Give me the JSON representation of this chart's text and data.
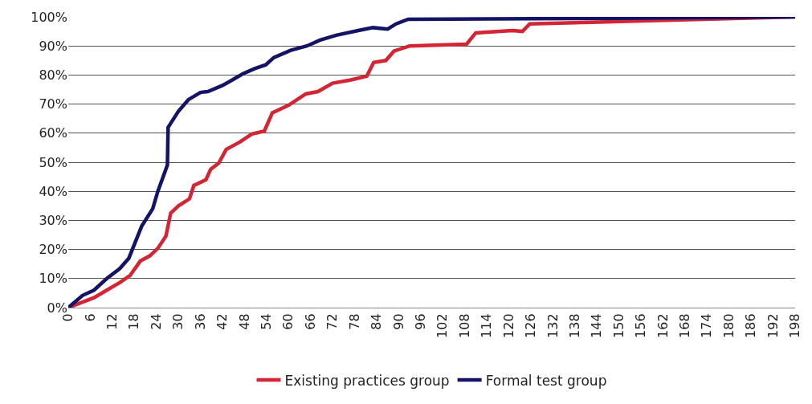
{
  "chart_data": {
    "type": "line",
    "xlim": [
      0,
      198
    ],
    "xticks": [
      0,
      6,
      12,
      18,
      24,
      30,
      36,
      42,
      48,
      54,
      60,
      66,
      72,
      78,
      84,
      90,
      96,
      102,
      108,
      114,
      120,
      126,
      132,
      138,
      144,
      150,
      156,
      162,
      168,
      174,
      180,
      186,
      192,
      198
    ],
    "ylim": [
      0,
      100
    ],
    "yticks": [
      {
        "value": 0,
        "label": "0%"
      },
      {
        "value": 10,
        "label": "10%"
      },
      {
        "value": 20,
        "label": "20%"
      },
      {
        "value": 30,
        "label": "30%"
      },
      {
        "value": 40,
        "label": "40%"
      },
      {
        "value": 50,
        "label": "50%"
      },
      {
        "value": 60,
        "label": "60%"
      },
      {
        "value": 70,
        "label": "70%"
      },
      {
        "value": 80,
        "label": "80%"
      },
      {
        "value": 90,
        "label": "90%"
      },
      {
        "value": 100,
        "label": "100%"
      }
    ],
    "grid": "y",
    "legend": "bottom",
    "marker": "none",
    "line_style": "solid",
    "series": [
      {
        "name": "Existing practices group",
        "color": "#d42535",
        "x": [
          0,
          7,
          10.5,
          14,
          16.8,
          19.6,
          22.2,
          24.4,
          26.6,
          27.9,
          30,
          33,
          34.2,
          37.5,
          38.8,
          41,
          43,
          46.8,
          50,
          53.4,
          55.6,
          60,
          64.7,
          68,
          72,
          77,
          81.3,
          83.2,
          86.5,
          88.7,
          93,
          108.5,
          111,
          121,
          123.7,
          125.7,
          198
        ],
        "values": [
          0,
          3.4,
          6,
          8.6,
          11,
          16,
          17.8,
          20.4,
          24.6,
          32.5,
          35,
          37.4,
          42,
          44,
          47.6,
          49.7,
          54.4,
          57,
          59.7,
          60.7,
          67,
          69.6,
          73.5,
          74.3,
          77.2,
          78.3,
          79.6,
          84.3,
          85,
          88.2,
          90,
          90.6,
          94.5,
          95.3,
          95,
          97.6,
          100
        ]
      },
      {
        "name": "Formal test group",
        "color": "#141466",
        "x": [
          0,
          3.9,
          7,
          10.5,
          14,
          16.5,
          20,
          23,
          24.4,
          27,
          27.2,
          30,
          32.7,
          36,
          38,
          42,
          44.7,
          47.5,
          50.8,
          53.8,
          56,
          60.6,
          65,
          68.6,
          73,
          79,
          83,
          87,
          89.3,
          92.6,
          150,
          198
        ],
        "values": [
          0,
          4.2,
          6,
          10,
          13.4,
          17,
          28,
          34,
          40,
          49,
          62,
          67.5,
          71.5,
          74,
          74.3,
          76.4,
          78.3,
          80.4,
          82.2,
          83.5,
          86,
          88.5,
          90,
          92,
          93.7,
          95.3,
          96.3,
          95.8,
          97.6,
          99.2,
          99.5,
          100
        ]
      }
    ]
  }
}
